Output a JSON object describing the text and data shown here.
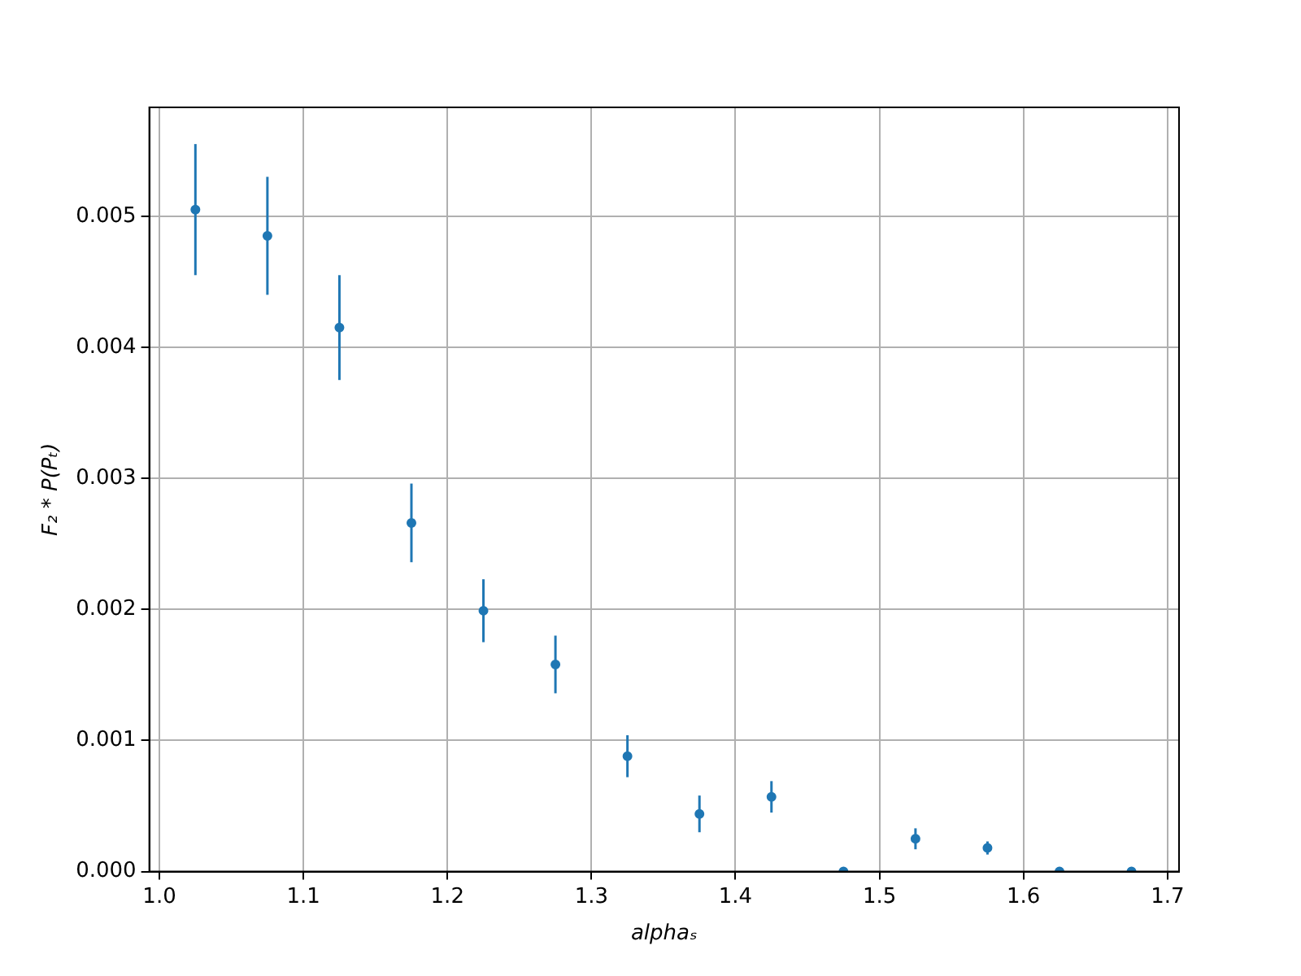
{
  "chart_data": {
    "type": "scatter",
    "xlabel": "alphaₛ",
    "ylabel": "F₂ * P(Pₜ)",
    "x": [
      1.025,
      1.075,
      1.125,
      1.175,
      1.225,
      1.275,
      1.325,
      1.375,
      1.425,
      1.475,
      1.525,
      1.575,
      1.625,
      1.675
    ],
    "series": [
      {
        "color": "#1f77b4",
        "values": [
          0.00505,
          0.00485,
          0.00415,
          0.00266,
          0.00199,
          0.00158,
          0.00088,
          0.00044,
          0.00057,
          0,
          0.00025,
          0.00018,
          0,
          0
        ],
        "errors": [
          0.0005,
          0.00045,
          0.0004,
          0.0003,
          0.00024,
          0.00022,
          0.00016,
          0.00014,
          0.00012,
          null,
          8e-05,
          5e-05,
          null,
          null
        ]
      }
    ],
    "xlim": [
      0.993,
      1.708
    ],
    "ylim": [
      0,
      0.00583
    ],
    "xticks": [
      {
        "value": 1.0,
        "label": "1.0"
      },
      {
        "value": 1.1,
        "label": "1.1"
      },
      {
        "value": 1.2,
        "label": "1.2"
      },
      {
        "value": 1.3,
        "label": "1.3"
      },
      {
        "value": 1.4,
        "label": "1.4"
      },
      {
        "value": 1.5,
        "label": "1.5"
      },
      {
        "value": 1.6,
        "label": "1.6"
      },
      {
        "value": 1.7,
        "label": "1.7"
      }
    ],
    "yticks": [
      {
        "value": 0,
        "label": "0.000"
      },
      {
        "value": 0.001,
        "label": "0.001"
      },
      {
        "value": 0.002,
        "label": "0.002"
      },
      {
        "value": 0.003,
        "label": "0.003"
      },
      {
        "value": 0.004,
        "label": "0.004"
      },
      {
        "value": 0.005,
        "label": "0.005"
      }
    ],
    "grid": true,
    "legend": false,
    "marker": "circle"
  }
}
